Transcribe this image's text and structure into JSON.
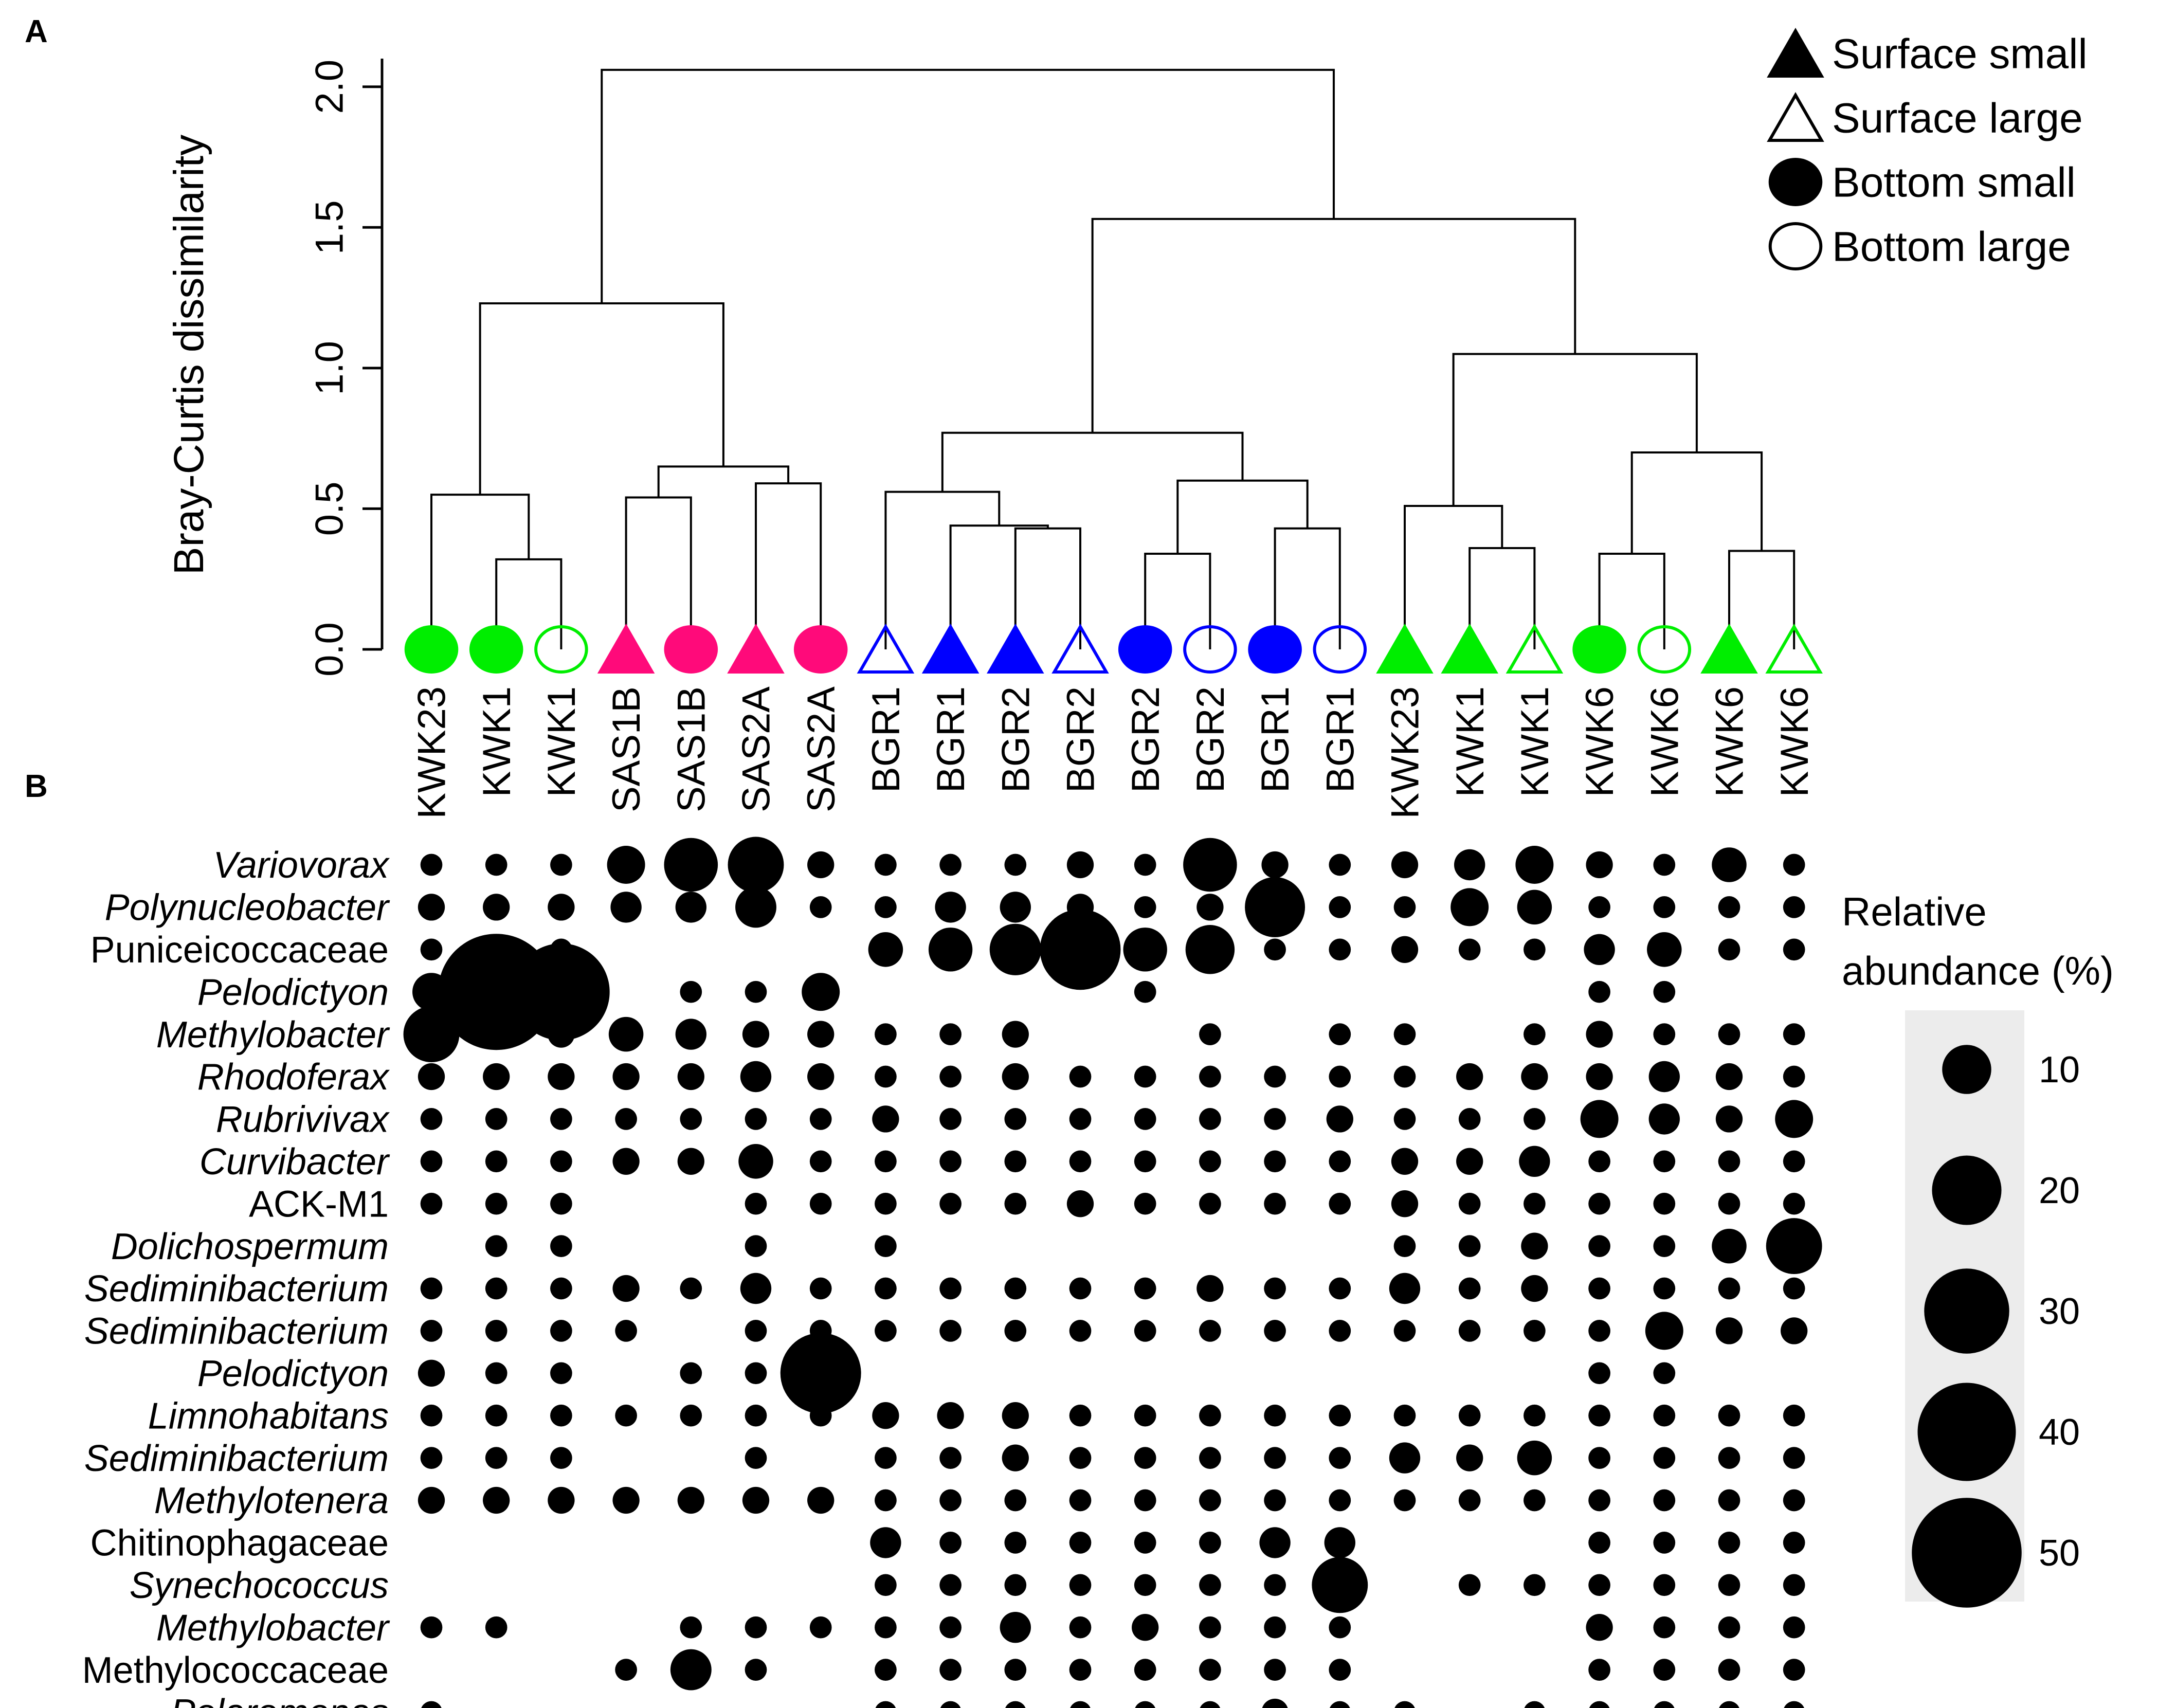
{
  "panels": {
    "a_label": "A",
    "b_label": "B"
  },
  "legend": {
    "entries": [
      {
        "label": "Surface small",
        "shape": "triangle",
        "filled": true
      },
      {
        "label": "Surface large",
        "shape": "triangle",
        "filled": false
      },
      {
        "label": "Bottom small",
        "shape": "circle",
        "filled": true
      },
      {
        "label": "Bottom large",
        "shape": "circle",
        "filled": false
      }
    ],
    "size_title_1": "Relative",
    "size_title_2": "abundance (%)",
    "size_values": [
      10,
      20,
      30,
      40,
      50
    ],
    "size_labels": [
      "10",
      "20",
      "30",
      "40",
      "50"
    ]
  },
  "colors": {
    "green": "#00ee00",
    "pink": "#ff0a7a",
    "blue": "#0000ff",
    "black": "#000000",
    "legend_bg": "#ececec"
  },
  "chart_data": [
    {
      "type": "dendrogram",
      "panel": "A",
      "ylabel": "Bray-Curtis dissimilarity",
      "ylim": [
        0,
        2.1
      ],
      "yticks": [
        0.0,
        0.5,
        1.0,
        1.5,
        2.0
      ],
      "ytick_labels": [
        "0.0",
        "0.5",
        "1.0",
        "1.5",
        "2.0"
      ],
      "leaves": [
        {
          "label": "KWK23",
          "shape": "circle",
          "filled": true,
          "color": "green"
        },
        {
          "label": "KWK1",
          "shape": "circle",
          "filled": true,
          "color": "green"
        },
        {
          "label": "KWK1",
          "shape": "circle",
          "filled": false,
          "color": "green"
        },
        {
          "label": "SAS1B",
          "shape": "triangle",
          "filled": true,
          "color": "pink"
        },
        {
          "label": "SAS1B",
          "shape": "circle",
          "filled": true,
          "color": "pink"
        },
        {
          "label": "SAS2A",
          "shape": "triangle",
          "filled": true,
          "color": "pink"
        },
        {
          "label": "SAS2A",
          "shape": "circle",
          "filled": true,
          "color": "pink"
        },
        {
          "label": "BGR1",
          "shape": "triangle",
          "filled": false,
          "color": "blue"
        },
        {
          "label": "BGR1",
          "shape": "triangle",
          "filled": true,
          "color": "blue"
        },
        {
          "label": "BGR2",
          "shape": "triangle",
          "filled": true,
          "color": "blue"
        },
        {
          "label": "BGR2",
          "shape": "triangle",
          "filled": false,
          "color": "blue"
        },
        {
          "label": "BGR2",
          "shape": "circle",
          "filled": true,
          "color": "blue"
        },
        {
          "label": "BGR2",
          "shape": "circle",
          "filled": false,
          "color": "blue"
        },
        {
          "label": "BGR1",
          "shape": "circle",
          "filled": true,
          "color": "blue"
        },
        {
          "label": "BGR1",
          "shape": "circle",
          "filled": false,
          "color": "blue"
        },
        {
          "label": "KWK23",
          "shape": "triangle",
          "filled": true,
          "color": "green"
        },
        {
          "label": "KWK1",
          "shape": "triangle",
          "filled": true,
          "color": "green"
        },
        {
          "label": "KWK1",
          "shape": "triangle",
          "filled": false,
          "color": "green"
        },
        {
          "label": "KWK6",
          "shape": "circle",
          "filled": true,
          "color": "green"
        },
        {
          "label": "KWK6",
          "shape": "circle",
          "filled": false,
          "color": "green"
        },
        {
          "label": "KWK6",
          "shape": "triangle",
          "filled": true,
          "color": "green"
        },
        {
          "label": "KWK6",
          "shape": "triangle",
          "filled": false,
          "color": "green"
        }
      ],
      "merges": [
        {
          "left": -2,
          "right": -3,
          "height": 0.32
        },
        {
          "left": -1,
          "right": 1,
          "height": 0.55
        },
        {
          "left": -4,
          "right": -5,
          "height": 0.54
        },
        {
          "left": -6,
          "right": -7,
          "height": 0.59
        },
        {
          "left": 3,
          "right": 4,
          "height": 0.65
        },
        {
          "left": 2,
          "right": 5,
          "height": 1.23
        },
        {
          "left": -10,
          "right": -11,
          "height": 0.43
        },
        {
          "left": -9,
          "right": 7,
          "height": 0.44
        },
        {
          "left": -8,
          "right": 8,
          "height": 0.56
        },
        {
          "left": -12,
          "right": -13,
          "height": 0.34
        },
        {
          "left": -14,
          "right": -15,
          "height": 0.43
        },
        {
          "left": 10,
          "right": 11,
          "height": 0.6
        },
        {
          "left": 9,
          "right": 12,
          "height": 0.77
        },
        {
          "left": -17,
          "right": -18,
          "height": 0.36
        },
        {
          "left": -16,
          "right": 14,
          "height": 0.51
        },
        {
          "left": -19,
          "right": -20,
          "height": 0.34
        },
        {
          "left": -21,
          "right": -22,
          "height": 0.35
        },
        {
          "left": 16,
          "right": 17,
          "height": 0.7
        },
        {
          "left": 15,
          "right": 18,
          "height": 1.05
        },
        {
          "left": 13,
          "right": 19,
          "height": 1.53
        },
        {
          "left": 6,
          "right": 20,
          "height": 2.06
        }
      ]
    },
    {
      "type": "bubble",
      "panel": "B",
      "value_unit": "Relative abundance (%)",
      "columns": [
        "KWK23",
        "KWK1",
        "KWK1",
        "SAS1B",
        "SAS1B",
        "SAS2A",
        "SAS2A",
        "BGR1",
        "BGR1",
        "BGR2",
        "BGR2",
        "BGR2",
        "BGR2",
        "BGR1",
        "BGR1",
        "KWK23",
        "KWK1",
        "KWK1",
        "KWK6",
        "KWK6",
        "KWK6",
        "KWK6"
      ],
      "rows": [
        {
          "taxon": "Variovorax",
          "italic": true,
          "values": [
            2,
            2,
            2,
            6,
            12,
            13,
            3,
            2,
            2,
            2,
            3,
            2,
            12,
            3,
            2,
            3,
            4,
            6,
            3,
            2,
            5,
            2
          ]
        },
        {
          "taxon": "Polynucleobacter",
          "italic": true,
          "values": [
            3,
            3,
            3,
            4,
            4,
            7,
            2,
            2,
            4,
            4,
            3,
            2,
            3,
            15,
            2,
            2,
            6,
            5,
            2,
            2,
            2,
            2
          ]
        },
        {
          "taxon": "Puniceicoccaceae",
          "italic": false,
          "values": [
            2,
            2,
            2,
            null,
            null,
            null,
            null,
            5,
            8,
            11,
            27,
            8,
            10,
            2,
            2,
            3,
            2,
            2,
            4,
            5,
            2,
            2
          ]
        },
        {
          "taxon": "Pelodictyon",
          "italic": true,
          "values": [
            6,
            56,
            39,
            null,
            2,
            2,
            6,
            null,
            null,
            null,
            null,
            2,
            null,
            null,
            null,
            null,
            null,
            null,
            2,
            2,
            null,
            null
          ]
        },
        {
          "taxon": "Methylobacter",
          "italic": true,
          "values": [
            13,
            3,
            3,
            5,
            4,
            3,
            3,
            2,
            2,
            3,
            null,
            null,
            2,
            null,
            2,
            2,
            null,
            2,
            3,
            2,
            2,
            2
          ]
        },
        {
          "taxon": "Rhodoferax",
          "italic": true,
          "values": [
            3,
            3,
            3,
            3,
            3,
            4,
            3,
            2,
            2,
            3,
            2,
            2,
            2,
            2,
            2,
            2,
            3,
            3,
            3,
            4,
            3,
            2
          ]
        },
        {
          "taxon": "Rubrivivax",
          "italic": true,
          "values": [
            2,
            2,
            2,
            2,
            2,
            2,
            2,
            3,
            2,
            2,
            2,
            2,
            2,
            2,
            3,
            2,
            2,
            2,
            6,
            4,
            3,
            6
          ]
        },
        {
          "taxon": "Curvibacter",
          "italic": true,
          "values": [
            2,
            2,
            2,
            3,
            3,
            5,
            2,
            2,
            2,
            2,
            2,
            2,
            2,
            2,
            2,
            3,
            3,
            4,
            2,
            2,
            2,
            2
          ]
        },
        {
          "taxon": "ACK-M1",
          "italic": false,
          "values": [
            2,
            2,
            2,
            null,
            null,
            2,
            2,
            2,
            2,
            2,
            3,
            2,
            2,
            2,
            2,
            3,
            2,
            2,
            2,
            2,
            2,
            2
          ]
        },
        {
          "taxon": "Dolichospermum",
          "italic": true,
          "values": [
            null,
            2,
            2,
            null,
            null,
            2,
            null,
            2,
            null,
            null,
            null,
            null,
            null,
            null,
            null,
            2,
            2,
            3,
            2,
            2,
            5,
            13
          ]
        },
        {
          "taxon": "Sediminibacterium",
          "italic": true,
          "values": [
            2,
            2,
            2,
            3,
            2,
            4,
            2,
            2,
            2,
            2,
            2,
            2,
            3,
            2,
            2,
            4,
            2,
            3,
            2,
            2,
            2,
            2
          ]
        },
        {
          "taxon": "Sediminibacterium",
          "italic": true,
          "values": [
            2,
            2,
            2,
            2,
            null,
            2,
            2,
            2,
            2,
            2,
            2,
            2,
            2,
            2,
            2,
            2,
            2,
            2,
            2,
            6,
            3,
            3
          ]
        },
        {
          "taxon": "Pelodictyon",
          "italic": true,
          "values": [
            3,
            2,
            2,
            null,
            2,
            2,
            27,
            null,
            null,
            null,
            null,
            null,
            null,
            null,
            null,
            null,
            null,
            null,
            2,
            2,
            null,
            null
          ]
        },
        {
          "taxon": "Limnohabitans",
          "italic": true,
          "values": [
            2,
            2,
            2,
            2,
            2,
            2,
            2,
            3,
            3,
            3,
            2,
            2,
            2,
            2,
            2,
            2,
            2,
            2,
            2,
            2,
            2,
            2
          ]
        },
        {
          "taxon": "Sediminibacterium",
          "italic": true,
          "values": [
            2,
            2,
            2,
            null,
            null,
            2,
            null,
            2,
            2,
            3,
            2,
            2,
            2,
            2,
            2,
            4,
            3,
            5,
            2,
            2,
            2,
            2
          ]
        },
        {
          "taxon": "Methylotenera",
          "italic": true,
          "values": [
            3,
            3,
            3,
            3,
            3,
            3,
            3,
            2,
            2,
            2,
            2,
            2,
            2,
            2,
            2,
            2,
            2,
            2,
            2,
            2,
            2,
            2
          ]
        },
        {
          "taxon": "Chitinophagaceae",
          "italic": false,
          "values": [
            null,
            null,
            null,
            null,
            null,
            null,
            null,
            4,
            2,
            2,
            2,
            2,
            2,
            4,
            4,
            null,
            null,
            null,
            2,
            2,
            2,
            2
          ]
        },
        {
          "taxon": "Synechococcus",
          "italic": true,
          "values": [
            null,
            null,
            null,
            null,
            null,
            null,
            null,
            2,
            2,
            2,
            2,
            2,
            2,
            2,
            13,
            null,
            2,
            2,
            2,
            2,
            2,
            2
          ]
        },
        {
          "taxon": "Methylobacter",
          "italic": true,
          "values": [
            2,
            2,
            null,
            null,
            2,
            2,
            2,
            2,
            2,
            4,
            2,
            3,
            2,
            2,
            2,
            null,
            null,
            null,
            3,
            2,
            2,
            2
          ]
        },
        {
          "taxon": "Methylococcaceae",
          "italic": false,
          "values": [
            null,
            null,
            null,
            2,
            7,
            2,
            null,
            2,
            2,
            2,
            2,
            2,
            2,
            2,
            2,
            null,
            null,
            null,
            2,
            2,
            2,
            2
          ]
        },
        {
          "taxon": "Polaromonas",
          "italic": true,
          "values": [
            2,
            null,
            null,
            null,
            null,
            null,
            null,
            2,
            2,
            2,
            2,
            2,
            2,
            3,
            2,
            2,
            null,
            2,
            2,
            2,
            2,
            2
          ]
        }
      ]
    }
  ]
}
